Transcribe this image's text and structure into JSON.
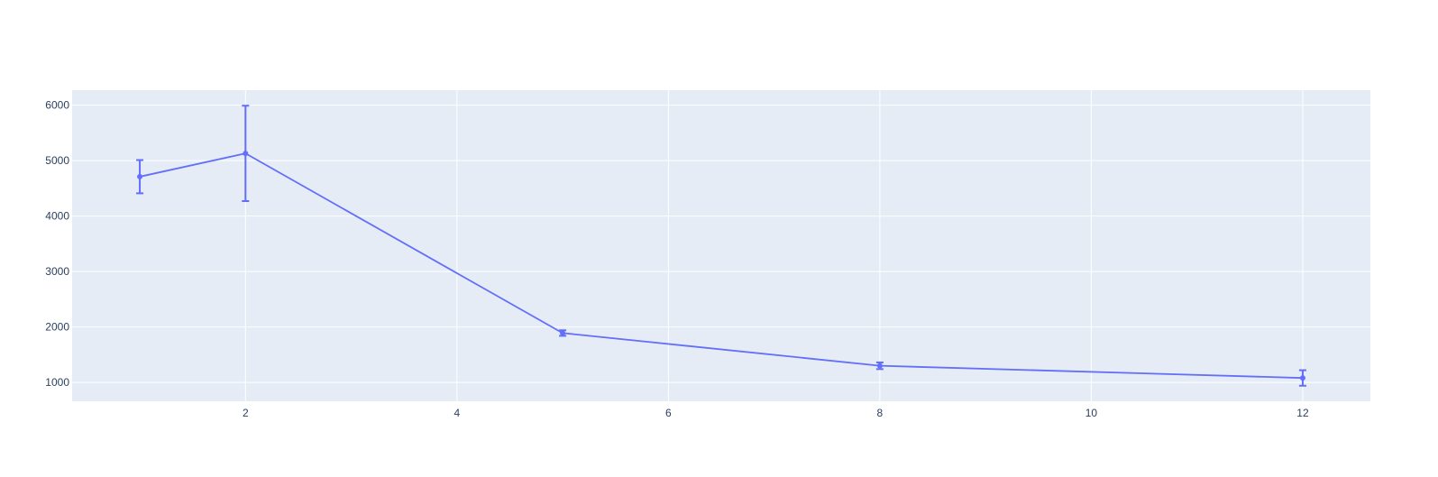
{
  "chart_data": {
    "type": "line",
    "title": "",
    "xlabel": "",
    "ylabel": "",
    "xlim": [
      0.36,
      12.64
    ],
    "ylim": [
      660,
      6270
    ],
    "x_ticks": [
      2,
      4,
      6,
      8,
      10,
      12
    ],
    "y_ticks": [
      1000,
      2000,
      3000,
      4000,
      5000,
      6000
    ],
    "grid": true,
    "legend": "none",
    "series": [
      {
        "x": [
          1,
          2,
          5,
          8,
          12
        ],
        "y": [
          4710,
          5130,
          1890,
          1300,
          1080
        ],
        "error_y": [
          300,
          860,
          50,
          60,
          140
        ]
      }
    ],
    "colors": {
      "plot_background": "#e5ecf6",
      "grid": "#ffffff",
      "series": "#636efa",
      "text": "#2a3f5f"
    }
  }
}
